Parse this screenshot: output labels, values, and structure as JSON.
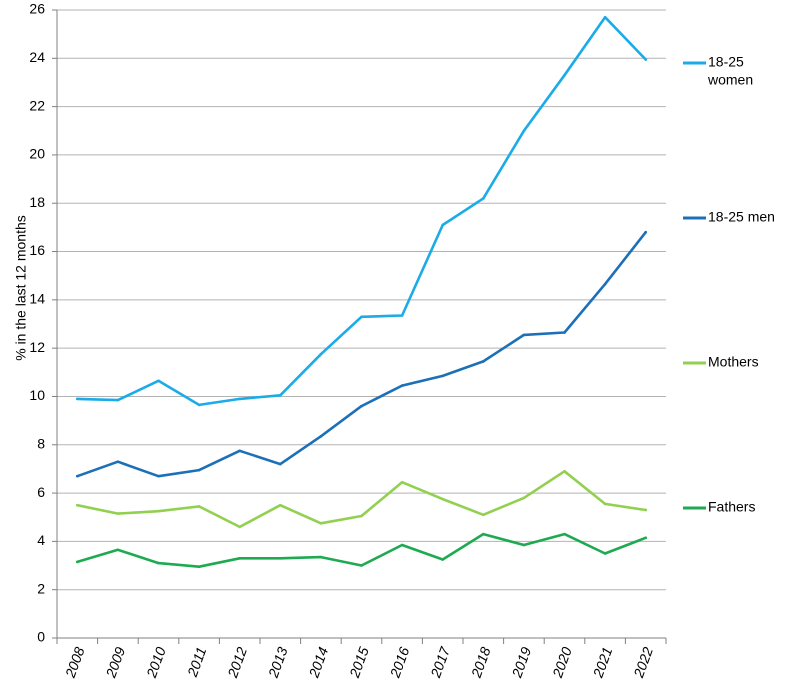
{
  "chart_data": {
    "type": "line",
    "title": "",
    "xlabel": "",
    "ylabel": "% in the last 12 months",
    "ylim": [
      0,
      26
    ],
    "yticks": [
      0,
      2,
      4,
      6,
      8,
      10,
      12,
      14,
      16,
      18,
      20,
      22,
      24,
      26
    ],
    "grid": "horizontal",
    "legend_placement": "right, aligned with line ends",
    "categories": [
      "2008",
      "2009",
      "2010",
      "2011",
      "2012",
      "2013",
      "2014",
      "2015",
      "2016",
      "2017",
      "2018",
      "2019",
      "2020",
      "2021",
      "2022"
    ],
    "series": [
      {
        "name": "18-25 women",
        "legend_lines": [
          "18-25",
          "women"
        ],
        "color": "#1aabe8",
        "values": [
          9.9,
          9.85,
          10.65,
          9.65,
          9.9,
          10.05,
          11.75,
          13.3,
          13.35,
          17.1,
          18.2,
          21.0,
          23.3,
          25.7,
          23.95
        ]
      },
      {
        "name": "18-25 men",
        "legend_lines": [
          "18-25 men"
        ],
        "color": "#1c70b8",
        "values": [
          6.7,
          7.3,
          6.7,
          6.95,
          7.75,
          7.2,
          8.35,
          9.6,
          10.45,
          10.85,
          11.45,
          12.55,
          12.65,
          14.65,
          16.8
        ]
      },
      {
        "name": "Mothers",
        "legend_lines": [
          "Mothers"
        ],
        "color": "#92d050",
        "values": [
          5.5,
          5.15,
          5.25,
          5.45,
          4.6,
          5.5,
          4.75,
          5.05,
          6.45,
          5.75,
          5.1,
          5.8,
          6.9,
          5.55,
          5.3
        ]
      },
      {
        "name": "Fathers",
        "legend_lines": [
          "Fathers"
        ],
        "color": "#1eaa50",
        "values": [
          3.15,
          3.65,
          3.1,
          2.95,
          3.3,
          3.3,
          3.35,
          3.0,
          3.85,
          3.25,
          4.3,
          3.85,
          4.3,
          3.5,
          4.15
        ]
      }
    ]
  }
}
